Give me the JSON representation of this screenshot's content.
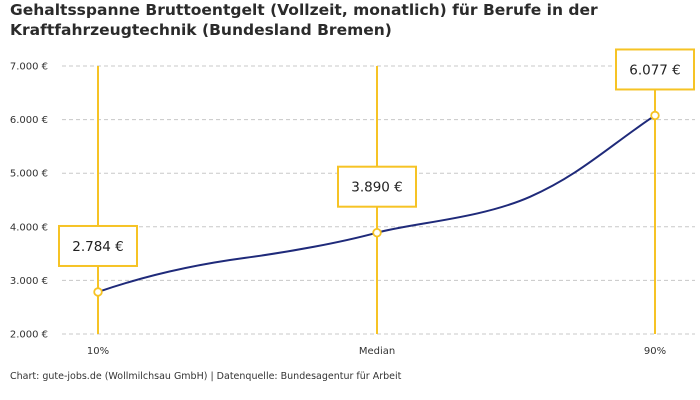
{
  "chart_data": {
    "type": "line",
    "title": "Gehaltsspanne Bruttoentgelt (Vollzeit, monatlich) für Berufe in der Kraftfahrzeugtechnik (Bundesland Bremen)",
    "categories": [
      "10%",
      "Median",
      "90%"
    ],
    "values": [
      2784,
      3890,
      6077
    ],
    "value_labels": [
      "2.784 €",
      "3.890 €",
      "6.077 €"
    ],
    "y_ticks": [
      2000,
      3000,
      4000,
      5000,
      6000,
      7000
    ],
    "y_tick_labels": [
      "2.000 €",
      "3.000 €",
      "4.000 €",
      "5.000 €",
      "6.000 €",
      "7.000 €"
    ],
    "ylim": [
      2000,
      7000
    ],
    "grid": true,
    "colors": {
      "line": "#1f2a7a",
      "marker": "#f6c325",
      "grid": "#c8c8c8"
    }
  },
  "source": "Chart: gute-jobs.de (Wollmilchsau GmbH) | Datenquelle: Bundesagentur für Arbeit"
}
